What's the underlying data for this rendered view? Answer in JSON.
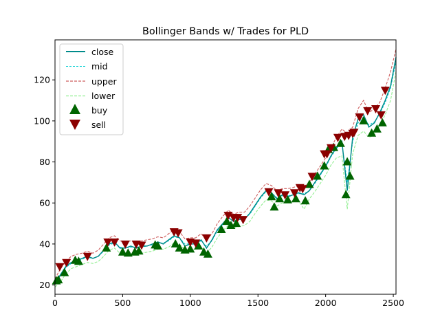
{
  "chart_data": {
    "type": "line",
    "title": "Bollinger Bands w/ Trades for PLD",
    "xlabel": "",
    "ylabel": "",
    "xlim": [
      0,
      2520
    ],
    "ylim": [
      15.5,
      139.5
    ],
    "x_ticks": [
      0,
      500,
      1000,
      1500,
      2000,
      2500
    ],
    "y_ticks": [
      20,
      40,
      60,
      80,
      100,
      120
    ],
    "grid": false,
    "legend_position": "top-left",
    "colors": {
      "close": "#008b8b",
      "mid": "#00ced1",
      "upper": "#cd5c5c",
      "lower": "#90ee90",
      "buy": "#006400",
      "sell": "#8b0000"
    },
    "series": [
      {
        "name": "close",
        "x": [
          0,
          40,
          80,
          120,
          160,
          200,
          240,
          280,
          320,
          360,
          400,
          440,
          480,
          520,
          560,
          600,
          640,
          680,
          720,
          760,
          800,
          840,
          880,
          920,
          960,
          1000,
          1040,
          1080,
          1120,
          1160,
          1200,
          1240,
          1280,
          1320,
          1360,
          1400,
          1440,
          1480,
          1520,
          1560,
          1600,
          1640,
          1680,
          1720,
          1760,
          1800,
          1840,
          1880,
          1920,
          1960,
          2000,
          2040,
          2080,
          2120,
          2160,
          2200,
          2240,
          2280,
          2320,
          2360,
          2400,
          2440,
          2480,
          2520
        ],
        "values": [
          21,
          25,
          29,
          31,
          32,
          33,
          34,
          33,
          34,
          37,
          40,
          41,
          38,
          38,
          39,
          38,
          39,
          39,
          40,
          41,
          40,
          42,
          44,
          43,
          39,
          40,
          40,
          42,
          38,
          42,
          47,
          50,
          53,
          51,
          52,
          52,
          55,
          59,
          63,
          66,
          65,
          62,
          64,
          63,
          64,
          65,
          64,
          66,
          70,
          74,
          78,
          83,
          87,
          90,
          66,
          92,
          101,
          103,
          97,
          99,
          104,
          110,
          117,
          131
        ]
      },
      {
        "name": "mid",
        "x": [
          0,
          40,
          80,
          120,
          160,
          200,
          240,
          280,
          320,
          360,
          400,
          440,
          480,
          520,
          560,
          600,
          640,
          680,
          720,
          760,
          800,
          840,
          880,
          920,
          960,
          1000,
          1040,
          1080,
          1120,
          1160,
          1200,
          1240,
          1280,
          1320,
          1360,
          1400,
          1440,
          1480,
          1520,
          1560,
          1600,
          1640,
          1680,
          1720,
          1760,
          1800,
          1840,
          1880,
          1920,
          1960,
          2000,
          2040,
          2080,
          2120,
          2160,
          2200,
          2240,
          2280,
          2320,
          2360,
          2400,
          2440,
          2480,
          2520
        ],
        "values": [
          21,
          24.5,
          28.5,
          30.5,
          31.5,
          32.5,
          33.5,
          33,
          34,
          36.5,
          39.5,
          40.5,
          38.5,
          38,
          38.5,
          38.5,
          38.5,
          39,
          39.5,
          40.5,
          40.5,
          41.5,
          43.5,
          43,
          40,
          40,
          40.5,
          41.5,
          39,
          41.5,
          46.5,
          49.5,
          52.5,
          51.5,
          52,
          52.5,
          54.5,
          58.5,
          62.5,
          65.5,
          65,
          62.5,
          63.5,
          63.5,
          64,
          64.5,
          64.5,
          66,
          69.5,
          73.5,
          77.5,
          82.5,
          86.5,
          89,
          70,
          90,
          99,
          102,
          98,
          99.5,
          103.5,
          109,
          116,
          129
        ]
      },
      {
        "name": "upper",
        "x": [
          0,
          40,
          80,
          120,
          160,
          200,
          240,
          280,
          320,
          360,
          400,
          440,
          480,
          520,
          560,
          600,
          640,
          680,
          720,
          760,
          800,
          840,
          880,
          920,
          960,
          1000,
          1040,
          1080,
          1120,
          1160,
          1200,
          1240,
          1280,
          1320,
          1360,
          1400,
          1440,
          1480,
          1520,
          1560,
          1600,
          1640,
          1680,
          1720,
          1760,
          1800,
          1840,
          1880,
          1920,
          1960,
          2000,
          2040,
          2080,
          2120,
          2160,
          2200,
          2240,
          2280,
          2320,
          2360,
          2400,
          2440,
          2480,
          2520
        ],
        "values": [
          23,
          28,
          31.5,
          34,
          35,
          35.5,
          36.5,
          35.5,
          37,
          40,
          43,
          44,
          41.5,
          41,
          41.5,
          41,
          41.5,
          42,
          42.5,
          43.5,
          43,
          45,
          47,
          46,
          42.5,
          43,
          43,
          45,
          42,
          45,
          50,
          53.5,
          56.5,
          54.5,
          55.5,
          55.5,
          58.5,
          62.5,
          66.5,
          69.5,
          68.5,
          66,
          67,
          67,
          67.5,
          68.5,
          68,
          70,
          74,
          78,
          82,
          87,
          92,
          96,
          94,
          97,
          106,
          110,
          104,
          106,
          109,
          116,
          124,
          135
        ]
      },
      {
        "name": "lower",
        "x": [
          0,
          40,
          80,
          120,
          160,
          200,
          240,
          280,
          320,
          360,
          400,
          440,
          480,
          520,
          560,
          600,
          640,
          680,
          720,
          760,
          800,
          840,
          880,
          920,
          960,
          1000,
          1040,
          1080,
          1120,
          1160,
          1200,
          1240,
          1280,
          1320,
          1360,
          1400,
          1440,
          1480,
          1520,
          1560,
          1600,
          1640,
          1680,
          1720,
          1760,
          1800,
          1840,
          1880,
          1920,
          1960,
          2000,
          2040,
          2080,
          2120,
          2160,
          2200,
          2240,
          2280,
          2320,
          2360,
          2400,
          2440,
          2480,
          2520
        ],
        "values": [
          19,
          21.5,
          25.5,
          28,
          29,
          30,
          31,
          30.5,
          31.5,
          34,
          37,
          38,
          35.5,
          35,
          35.5,
          35.5,
          35.5,
          36,
          36.5,
          37.5,
          37.5,
          38.5,
          40.5,
          40,
          37,
          37,
          37.5,
          38.5,
          35.5,
          38.5,
          43,
          46.5,
          49,
          48,
          48.5,
          49,
          51,
          55,
          58.5,
          61.5,
          61,
          58.5,
          60,
          60,
          60.5,
          61,
          57,
          62,
          65.5,
          69.5,
          73.5,
          78.5,
          82,
          83,
          57,
          84,
          93,
          95,
          92,
          93,
          98,
          103,
          110,
          124
        ]
      }
    ],
    "markers": [
      {
        "name": "buy",
        "x": [
          10,
          25,
          70,
          150,
          175,
          380,
          500,
          540,
          590,
          620,
          740,
          760,
          890,
          920,
          960,
          1000,
          1060,
          1100,
          1130,
          1230,
          1270,
          1300,
          1340,
          1600,
          1620,
          1660,
          1720,
          1780,
          1850,
          1880,
          1940,
          1990,
          2020,
          2060,
          2110,
          2150,
          2160,
          2180,
          2280,
          2340,
          2380,
          2420
        ],
        "values": [
          22,
          22.5,
          26,
          32,
          31.5,
          38,
          36,
          35.5,
          36,
          36.5,
          39.5,
          39,
          40,
          38,
          37,
          37.5,
          39,
          36,
          35,
          47,
          51,
          49,
          50,
          63,
          58,
          62,
          61.5,
          62,
          61,
          69,
          73,
          78,
          86,
          87,
          89,
          64,
          80,
          73,
          100,
          94,
          96,
          99
        ]
      },
      {
        "name": "sell",
        "x": [
          35,
          85,
          240,
          390,
          440,
          520,
          600,
          640,
          880,
          910,
          1000,
          1040,
          1120,
          1280,
          1320,
          1350,
          1390,
          1580,
          1650,
          1700,
          1770,
          1810,
          1830,
          1900,
          1990,
          2010,
          2040,
          2090,
          2140,
          2170,
          2200,
          2210,
          2250,
          2310,
          2370,
          2410,
          2440
        ],
        "values": [
          29,
          31,
          34,
          41,
          41,
          40,
          40,
          39.5,
          46,
          45.5,
          41,
          40.5,
          43,
          54,
          53,
          53,
          52,
          65.5,
          65,
          64,
          65,
          67.5,
          67,
          73,
          84,
          84,
          87,
          92,
          92.5,
          93,
          94,
          94.5,
          102,
          105,
          106,
          103,
          115
        ]
      }
    ]
  }
}
